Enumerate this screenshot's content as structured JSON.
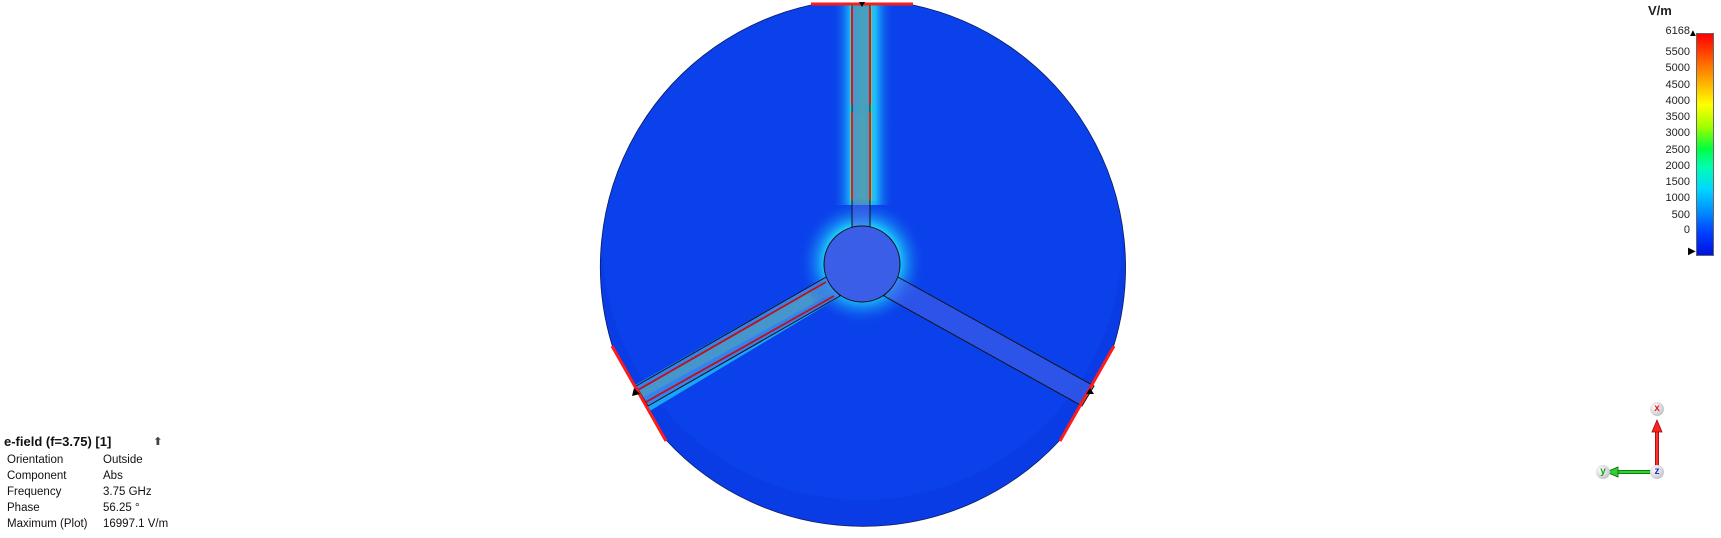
{
  "info": {
    "title": "e-field (f=3.75) [1]",
    "rows": [
      {
        "key": "Orientation",
        "value": "Outside"
      },
      {
        "key": "Component",
        "value": "Abs"
      },
      {
        "key": "Frequency",
        "value": "3.75 GHz"
      },
      {
        "key": "Phase",
        "value": "56.25 °"
      },
      {
        "key": "Maximum (Plot)",
        "value": "16997.1 V/m"
      }
    ]
  },
  "legend": {
    "unit": "V/m",
    "ticks": [
      "6168",
      "5500",
      "5000",
      "4500",
      "4000",
      "3500",
      "3000",
      "2500",
      "2000",
      "1500",
      "1000",
      "500",
      "0"
    ]
  },
  "triad": {
    "x": "x",
    "y": "y",
    "z": "z"
  },
  "colors": {
    "field_base": "#0a3ce6",
    "ports": "#ff1a1a",
    "axis_x": "#e02020",
    "axis_y": "#20b020"
  }
}
